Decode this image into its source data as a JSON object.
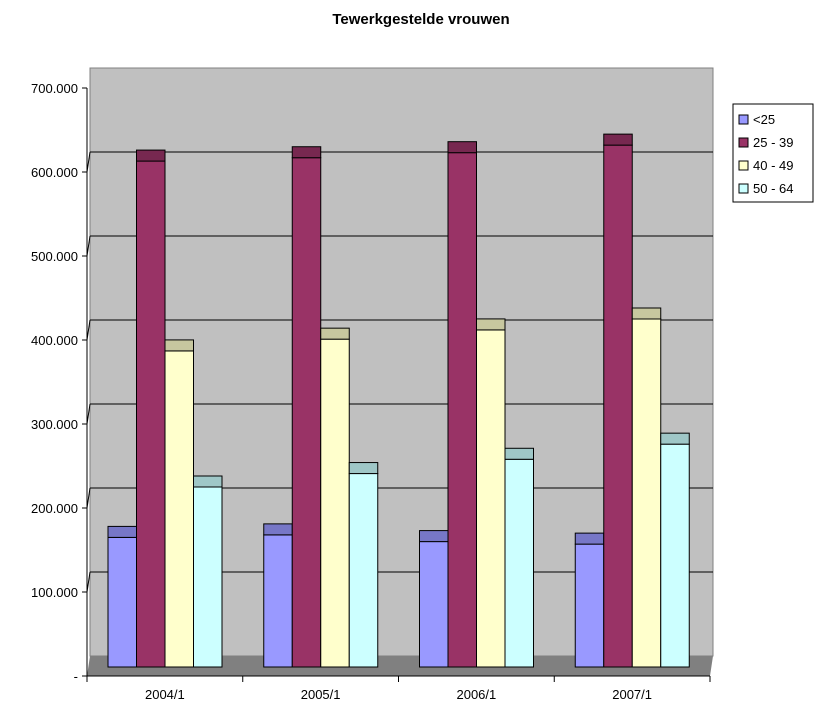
{
  "chart_data": {
    "type": "bar",
    "title": "Tewerkgestelde vrouwen",
    "xlabel": "",
    "ylabel": "",
    "categories": [
      "2004/1",
      "2005/1",
      "2006/1",
      "2007/1"
    ],
    "series": [
      {
        "name": "<25",
        "values": [
          165000,
          168000,
          160000,
          157000
        ],
        "color": "#9999ff"
      },
      {
        "name": "25 - 39",
        "values": [
          613000,
          617000,
          623000,
          632000
        ],
        "color": "#993366"
      },
      {
        "name": "40 - 49",
        "values": [
          387000,
          401000,
          412000,
          425000
        ],
        "color": "#ffffcc"
      },
      {
        "name": "50 - 64",
        "values": [
          225000,
          241000,
          258000,
          276000
        ],
        "color": "#ccffff"
      }
    ],
    "ylim": [
      0,
      700000
    ],
    "y_ticks": [
      0,
      100000,
      200000,
      300000,
      400000,
      500000,
      600000,
      700000
    ],
    "y_tick_labels": [
      "-",
      "100.000",
      "200.000",
      "300.000",
      "400.000",
      "500.000",
      "600.000",
      "700.000"
    ],
    "style": "3d",
    "grid": true,
    "legend_position": "right",
    "colors": {
      "plot_wall": "#c0c0c0",
      "floor": "#808080",
      "gridline": "#000000"
    }
  }
}
